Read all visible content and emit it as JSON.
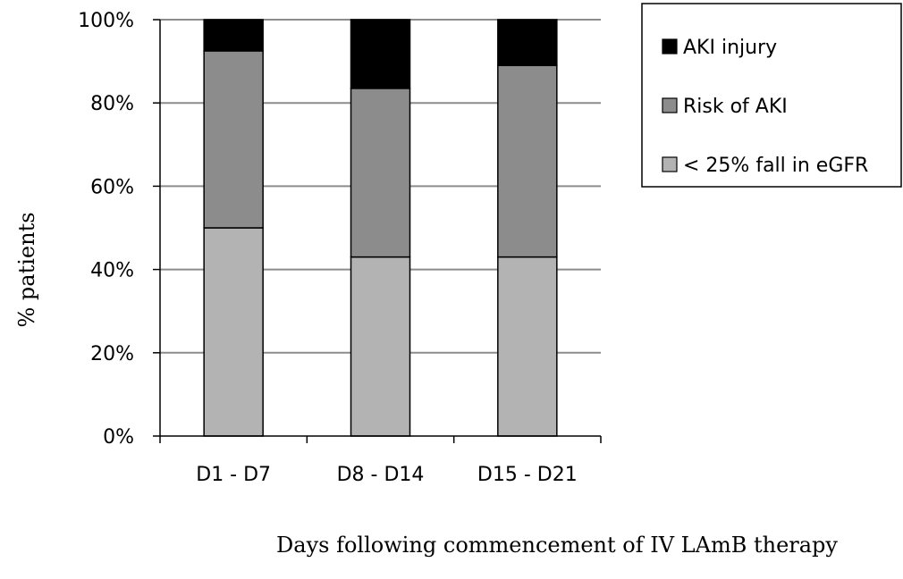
{
  "chart_data": {
    "type": "bar",
    "stacked": true,
    "categories": [
      "D1 - D7",
      "D8 - D14",
      "D15 - D21"
    ],
    "series": [
      {
        "name": "< 25% fall in eGFR",
        "values": [
          50,
          43,
          43
        ],
        "color": "#b3b3b3"
      },
      {
        "name": "Risk of AKI",
        "values": [
          42.5,
          40.5,
          46
        ],
        "color": "#8c8c8c"
      },
      {
        "name": "AKI injury",
        "values": [
          7.5,
          16.5,
          11
        ],
        "color": "#000000"
      }
    ],
    "legend_order": [
      "AKI injury",
      "Risk of AKI",
      "< 25% fall in eGFR"
    ],
    "title": "",
    "xlabel": "Days following commencement of IV LAmB therapy",
    "ylabel": "% patients",
    "ylim": [
      0,
      100
    ],
    "yticks": [
      "0%",
      "20%",
      "40%",
      "60%",
      "80%",
      "100%"
    ],
    "grid": true,
    "legend_position": "right"
  }
}
